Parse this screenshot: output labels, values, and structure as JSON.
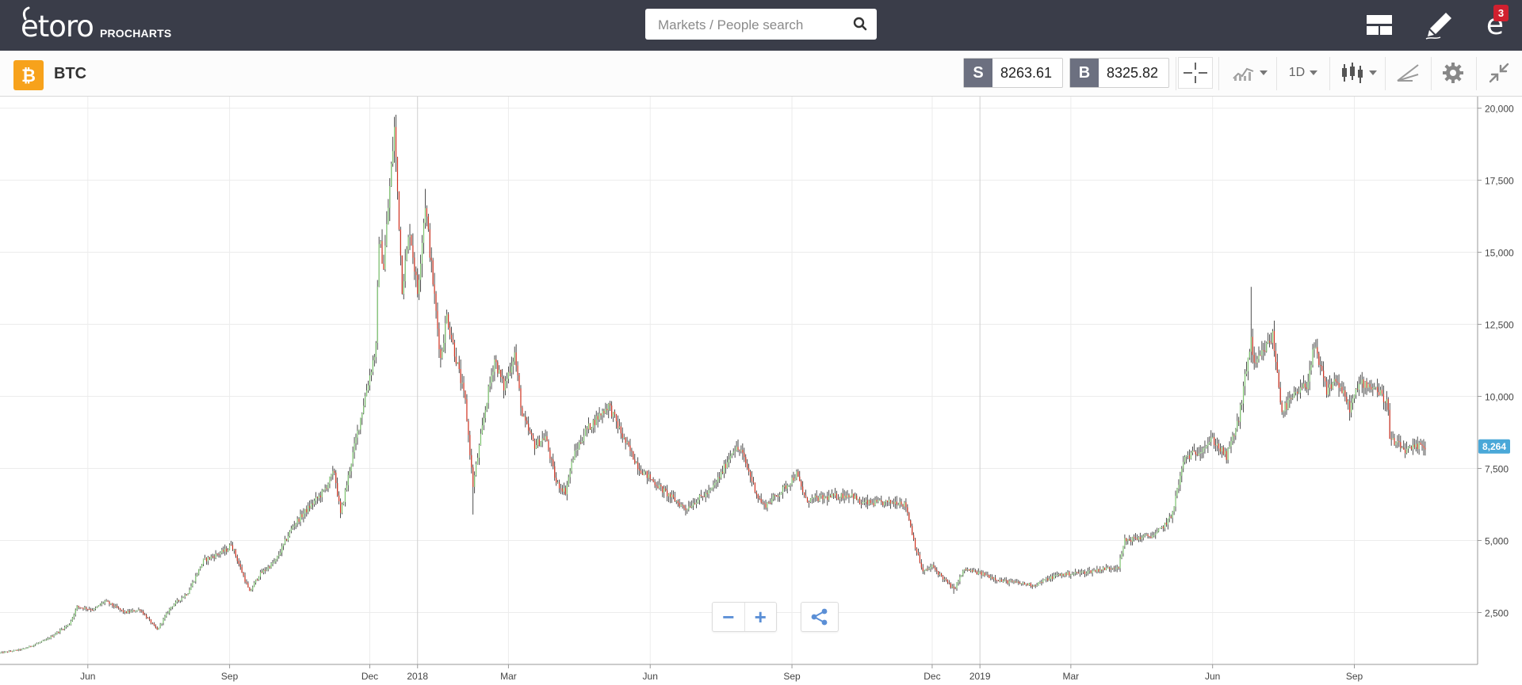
{
  "header": {
    "logo_text": "etoro",
    "logo_subtitle": "PROCHARTS",
    "search_placeholder": "Markets / People search",
    "notification_count": "3",
    "icons": [
      "layout-icon",
      "edit-icon",
      "etoro-user-icon"
    ]
  },
  "instrument": {
    "symbol": "BTC",
    "icon": "bitcoin-icon",
    "icon_color": "#f7a21b",
    "sell_label": "S",
    "sell_price": "8263.61",
    "buy_label": "B",
    "buy_price": "8325.82",
    "timeframe": "1D",
    "tools": [
      "crosshair-icon",
      "indicators-icon",
      "timeframe-select",
      "chart-type-icon",
      "drawing-icon",
      "settings-icon",
      "collapse-icon"
    ]
  },
  "chart_data": {
    "type": "candlestick",
    "title": "",
    "xlabel": "",
    "ylabel": "",
    "ylim": [
      700,
      20400
    ],
    "y_ticks": [
      "2,500",
      "5,000",
      "7,500",
      "10,000",
      "12,500",
      "15,000",
      "17,500",
      "20,000"
    ],
    "y_tick_values": [
      2500,
      5000,
      7500,
      10000,
      12500,
      15000,
      17500,
      20000
    ],
    "x_ticks": [
      "Jun",
      "Sep",
      "Dec",
      "2018",
      "Mar",
      "Jun",
      "Sep",
      "Dec",
      "2019",
      "Mar",
      "Jun",
      "Sep"
    ],
    "x_tick_dates": [
      "2017-06-01",
      "2017-09-01",
      "2017-12-01",
      "2018-01-01",
      "2018-03-01",
      "2018-06-01",
      "2018-09-01",
      "2018-12-01",
      "2019-01-01",
      "2019-03-01",
      "2019-06-01",
      "2019-09-01"
    ],
    "x_range": [
      "2017-04-05",
      "2019-11-20"
    ],
    "up_color": "#7cc36e",
    "down_color": "#d0311f",
    "last_price_label": "8,264",
    "last_price_value": 8264,
    "last_price_color": "#4aa8d8",
    "close_path": [
      [
        "2017-04-05",
        1100
      ],
      [
        "2017-04-20",
        1230
      ],
      [
        "2017-05-05",
        1550
      ],
      [
        "2017-05-20",
        2100
      ],
      [
        "2017-05-25",
        2700
      ],
      [
        "2017-06-05",
        2600
      ],
      [
        "2017-06-12",
        2900
      ],
      [
        "2017-06-25",
        2500
      ],
      [
        "2017-07-05",
        2600
      ],
      [
        "2017-07-16",
        1900
      ],
      [
        "2017-07-25",
        2700
      ],
      [
        "2017-08-05",
        3200
      ],
      [
        "2017-08-15",
        4300
      ],
      [
        "2017-08-31",
        4700
      ],
      [
        "2017-09-02",
        4900
      ],
      [
        "2017-09-14",
        3200
      ],
      [
        "2017-09-20",
        3800
      ],
      [
        "2017-10-01",
        4300
      ],
      [
        "2017-10-12",
        5500
      ],
      [
        "2017-10-20",
        6000
      ],
      [
        "2017-11-01",
        6700
      ],
      [
        "2017-11-08",
        7400
      ],
      [
        "2017-11-12",
        5900
      ],
      [
        "2017-11-20",
        8000
      ],
      [
        "2017-11-28",
        10000
      ],
      [
        "2017-12-05",
        11700
      ],
      [
        "2017-12-07",
        15500
      ],
      [
        "2017-12-10",
        14500
      ],
      [
        "2017-12-17",
        19300
      ],
      [
        "2017-12-22",
        13800
      ],
      [
        "2017-12-27",
        15800
      ],
      [
        "2018-01-01",
        13600
      ],
      [
        "2018-01-06",
        16700
      ],
      [
        "2018-01-10",
        14500
      ],
      [
        "2018-01-16",
        11300
      ],
      [
        "2018-01-20",
        12800
      ],
      [
        "2018-02-01",
        9800
      ],
      [
        "2018-02-06",
        6900
      ],
      [
        "2018-02-15",
        9900
      ],
      [
        "2018-02-20",
        11300
      ],
      [
        "2018-02-26",
        10300
      ],
      [
        "2018-03-05",
        11500
      ],
      [
        "2018-03-10",
        9300
      ],
      [
        "2018-03-18",
        8300
      ],
      [
        "2018-03-25",
        8600
      ],
      [
        "2018-04-01",
        7000
      ],
      [
        "2018-04-07",
        6700
      ],
      [
        "2018-04-12",
        7900
      ],
      [
        "2018-04-20",
        8800
      ],
      [
        "2018-05-05",
        9700
      ],
      [
        "2018-05-15",
        8500
      ],
      [
        "2018-05-25",
        7500
      ],
      [
        "2018-06-10",
        6700
      ],
      [
        "2018-06-24",
        6100
      ],
      [
        "2018-07-01",
        6400
      ],
      [
        "2018-07-10",
        6700
      ],
      [
        "2018-07-17",
        7300
      ],
      [
        "2018-07-25",
        8200
      ],
      [
        "2018-07-30",
        8100
      ],
      [
        "2018-08-10",
        6500
      ],
      [
        "2018-08-14",
        6200
      ],
      [
        "2018-08-25",
        6700
      ],
      [
        "2018-09-04",
        7300
      ],
      [
        "2018-09-10",
        6400
      ],
      [
        "2018-09-25",
        6500
      ],
      [
        "2018-10-10",
        6600
      ],
      [
        "2018-10-15",
        6300
      ],
      [
        "2018-11-01",
        6300
      ],
      [
        "2018-11-10",
        6350
      ],
      [
        "2018-11-14",
        6200
      ],
      [
        "2018-11-20",
        4800
      ],
      [
        "2018-11-25",
        3900
      ],
      [
        "2018-12-01",
        4100
      ],
      [
        "2018-12-15",
        3300
      ],
      [
        "2018-12-22",
        4000
      ],
      [
        "2019-01-05",
        3800
      ],
      [
        "2019-01-15",
        3600
      ],
      [
        "2019-02-05",
        3450
      ],
      [
        "2019-02-20",
        3800
      ],
      [
        "2019-03-10",
        3900
      ],
      [
        "2019-04-01",
        4100
      ],
      [
        "2019-04-05",
        5000
      ],
      [
        "2019-04-25",
        5200
      ],
      [
        "2019-05-05",
        5800
      ],
      [
        "2019-05-14",
        7900
      ],
      [
        "2019-05-20",
        8000
      ],
      [
        "2019-06-01",
        8500
      ],
      [
        "2019-06-10",
        7900
      ],
      [
        "2019-06-18",
        9200
      ],
      [
        "2019-06-26",
        12000
      ],
      [
        "2019-06-28",
        11000
      ],
      [
        "2019-07-10",
        12100
      ],
      [
        "2019-07-16",
        9500
      ],
      [
        "2019-07-24",
        10000
      ],
      [
        "2019-08-01",
        10400
      ],
      [
        "2019-08-06",
        11700
      ],
      [
        "2019-08-14",
        10200
      ],
      [
        "2019-08-20",
        10600
      ],
      [
        "2019-08-29",
        9600
      ],
      [
        "2019-09-05",
        10500
      ],
      [
        "2019-09-15",
        10300
      ],
      [
        "2019-09-23",
        9700
      ],
      [
        "2019-09-24",
        8500
      ],
      [
        "2019-10-05",
        8100
      ],
      [
        "2019-10-15",
        8300
      ],
      [
        "2019-10-17",
        8264
      ]
    ],
    "annotations": [
      {
        "date": "2017-12-17",
        "high": 19700
      },
      {
        "date": "2018-01-06",
        "high": 17200
      },
      {
        "date": "2018-02-06",
        "low": 5900
      },
      {
        "date": "2018-12-15",
        "low": 3150
      },
      {
        "date": "2019-06-26",
        "high": 13800
      }
    ]
  },
  "chart_controls": {
    "zoom_out_label": "−",
    "zoom_in_label": "+",
    "share_icon": "share-icon"
  }
}
